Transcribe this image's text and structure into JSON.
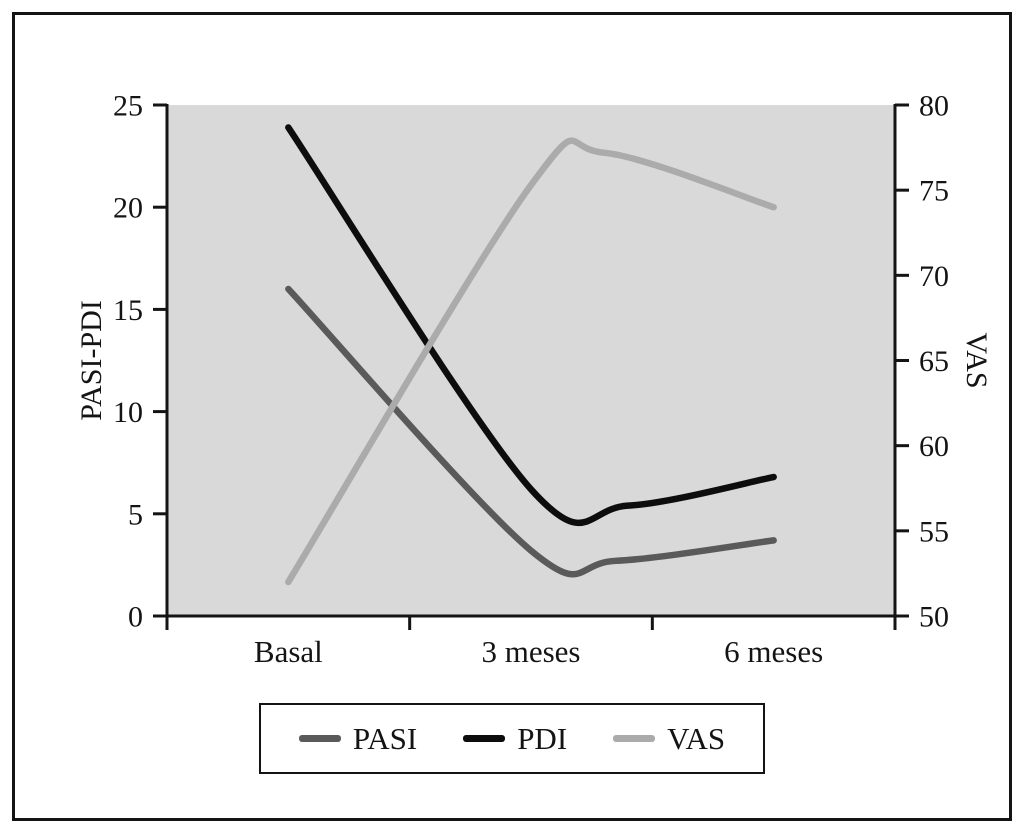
{
  "chart_data": {
    "type": "line",
    "title": "",
    "x_categories": [
      "Basal",
      "3 meses",
      "6 meses"
    ],
    "left_axis": {
      "label": "PASI-PDI",
      "range": [
        0,
        25
      ],
      "ticks": [
        0,
        5,
        10,
        15,
        20,
        25
      ]
    },
    "right_axis": {
      "label": "VAS",
      "range": [
        50,
        80
      ],
      "ticks": [
        50,
        55,
        60,
        65,
        70,
        75,
        80
      ]
    },
    "plot_background": "#d9d9d9",
    "grid": false,
    "legend_position": "bottom",
    "series": [
      {
        "name": "PASI",
        "axis": "left",
        "color": "#5a5a5a",
        "points": [
          [
            0,
            16.0
          ],
          [
            1,
            3.2
          ],
          [
            1.35,
            2.7
          ],
          [
            2,
            3.7
          ]
        ]
      },
      {
        "name": "PDI",
        "axis": "left",
        "color": "#0d0d0d",
        "points": [
          [
            0,
            23.9
          ],
          [
            1,
            6.2
          ],
          [
            1.4,
            5.4
          ],
          [
            2,
            6.8
          ]
        ]
      },
      {
        "name": "VAS",
        "axis": "right",
        "color": "#ababab",
        "points": [
          [
            0,
            52.0
          ],
          [
            1,
            75.3
          ],
          [
            1.3,
            77.2
          ],
          [
            2,
            74.0
          ]
        ]
      }
    ]
  }
}
